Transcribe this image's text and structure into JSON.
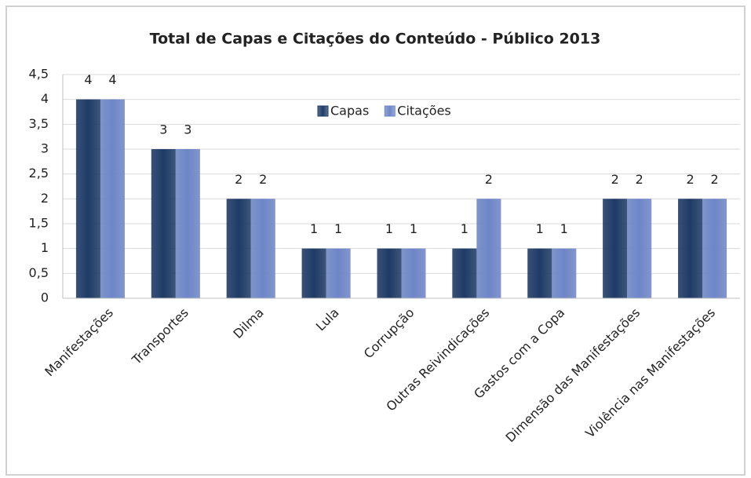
{
  "chart_data": {
    "type": "bar",
    "title": "Total de Capas e Citações do Conteúdo - Público 2013",
    "categories": [
      "Manifestações",
      "Transportes",
      "Dilma",
      "Lula",
      "Corrupção",
      "Outras Reivindicações",
      "Gastos com a Copa",
      "Dimensão das Manifestações",
      "Violência nas Manifestações"
    ],
    "series": [
      {
        "name": "Capas",
        "color": "#1f3b66",
        "values": [
          4,
          3,
          2,
          1,
          1,
          1,
          1,
          2,
          2
        ]
      },
      {
        "name": "Citações",
        "color": "#6e86c6",
        "values": [
          4,
          3,
          2,
          1,
          1,
          2,
          1,
          2,
          2
        ]
      }
    ],
    "ylim": [
      0,
      4.5
    ],
    "yticks": [
      0,
      {
        "value": 0.5,
        "label": "0,5"
      },
      1,
      {
        "value": 1.5,
        "label": "1,5"
      },
      2,
      {
        "value": 2.5,
        "label": "2,5"
      },
      3,
      {
        "value": 3.5,
        "label": "3,5"
      },
      4,
      {
        "value": 4.5,
        "label": "4,5"
      }
    ],
    "grid": true,
    "legend": "top"
  }
}
